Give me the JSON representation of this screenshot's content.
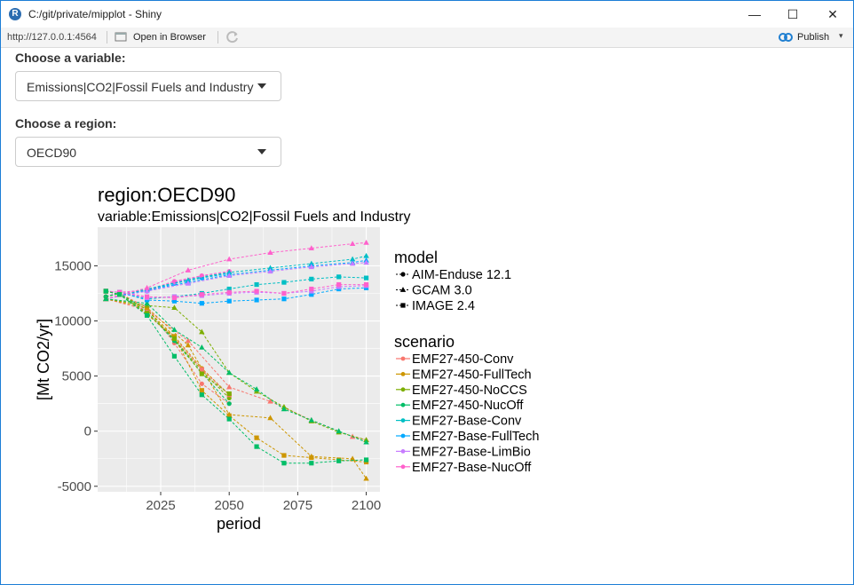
{
  "window": {
    "title": "C:/git/private/mipplot - Shiny",
    "minimize_glyph": "—",
    "maximize_glyph": "☐",
    "close_glyph": "✕"
  },
  "toolbar": {
    "url": "http://127.0.0.1:4564",
    "open_in_browser": "Open in Browser",
    "publish": "Publish",
    "publish_caret": "▾"
  },
  "controls": {
    "variable_label": "Choose a variable:",
    "variable_value": "Emissions|CO2|Fossil Fuels and Industry",
    "region_label": "Choose a region:",
    "region_value": "OECD90"
  },
  "colors": {
    "panel": "#ebebeb",
    "window_border": "#1c7ed6",
    "publish_blue": "#1f7fd1"
  },
  "chart_data": {
    "type": "line",
    "title": "region:OECD90",
    "subtitle": "variable:Emissions|CO2|Fossil Fuels and Industry",
    "xlabel": "period",
    "ylabel": "[Mt CO2/yr]",
    "xlim": [
      2002,
      2105
    ],
    "ylim": [
      -5500,
      18500
    ],
    "xticks": [
      2025,
      2050,
      2075,
      2100
    ],
    "yticks": [
      -5000,
      0,
      5000,
      10000,
      15000
    ],
    "xtick_labels": [
      "2025",
      "2050",
      "2075",
      "2100"
    ],
    "ytick_labels": [
      "-5000",
      "0",
      "5000",
      "10000",
      "15000"
    ],
    "grid": true,
    "legend_position": "right",
    "legend": {
      "model_title": "model",
      "models": [
        {
          "name": "AIM-Enduse 12.1",
          "shape": "circle"
        },
        {
          "name": "GCAM 3.0",
          "shape": "triangle"
        },
        {
          "name": "IMAGE 2.4",
          "shape": "square"
        }
      ],
      "scenario_title": "scenario",
      "scenarios": [
        {
          "name": "EMF27-450-Conv",
          "color": "#f8766d"
        },
        {
          "name": "EMF27-450-FullTech",
          "color": "#cd9600"
        },
        {
          "name": "EMF27-450-NoCCS",
          "color": "#7cae00"
        },
        {
          "name": "EMF27-450-NucOff",
          "color": "#00be67"
        },
        {
          "name": "EMF27-Base-Conv",
          "color": "#00bfc4"
        },
        {
          "name": "EMF27-Base-FullTech",
          "color": "#00a9ff"
        },
        {
          "name": "EMF27-Base-LimBio",
          "color": "#c77cff"
        },
        {
          "name": "EMF27-Base-NucOff",
          "color": "#ff61cc"
        }
      ]
    },
    "series": [
      {
        "model": "AIM-Enduse 12.1",
        "scenario": "EMF27-Base-Conv",
        "x": [
          2005,
          2010,
          2020,
          2030,
          2040,
          2050
        ],
        "y": [
          12200,
          12600,
          12700,
          13500,
          14000,
          14400
        ]
      },
      {
        "model": "AIM-Enduse 12.1",
        "scenario": "EMF27-Base-FullTech",
        "x": [
          2005,
          2010,
          2020,
          2030,
          2040,
          2050
        ],
        "y": [
          12200,
          12600,
          12700,
          13400,
          13900,
          14300
        ]
      },
      {
        "model": "AIM-Enduse 12.1",
        "scenario": "EMF27-Base-LimBio",
        "x": [
          2005,
          2010,
          2020,
          2030,
          2040,
          2050
        ],
        "y": [
          12200,
          12600,
          12800,
          13500,
          14100,
          14500
        ]
      },
      {
        "model": "AIM-Enduse 12.1",
        "scenario": "EMF27-Base-NucOff",
        "x": [
          2005,
          2010,
          2020,
          2030,
          2040,
          2050
        ],
        "y": [
          12200,
          12600,
          12800,
          13600,
          14100,
          14500
        ]
      },
      {
        "model": "AIM-Enduse 12.1",
        "scenario": "EMF27-450-Conv",
        "x": [
          2005,
          2010,
          2020,
          2030,
          2040,
          2050
        ],
        "y": [
          12200,
          12500,
          11200,
          8000,
          4300,
          2500
        ]
      },
      {
        "model": "AIM-Enduse 12.1",
        "scenario": "EMF27-450-FullTech",
        "x": [
          2005,
          2010,
          2020,
          2030,
          2040,
          2050
        ],
        "y": [
          12200,
          12500,
          11000,
          8600,
          5700,
          3300
        ]
      },
      {
        "model": "AIM-Enduse 12.1",
        "scenario": "EMF27-450-NoCCS",
        "x": [
          2005,
          2010,
          2020,
          2030,
          2040,
          2050
        ],
        "y": [
          12200,
          12500,
          11000,
          8300,
          5500,
          3000
        ]
      },
      {
        "model": "AIM-Enduse 12.1",
        "scenario": "EMF27-450-NucOff",
        "x": [
          2005,
          2010,
          2020,
          2030,
          2040,
          2050
        ],
        "y": [
          12200,
          12500,
          10800,
          8200,
          5300,
          2500
        ]
      },
      {
        "model": "GCAM 3.0",
        "scenario": "EMF27-Base-Conv",
        "x": [
          2005,
          2020,
          2035,
          2050,
          2065,
          2080,
          2095,
          2100
        ],
        "y": [
          12000,
          12900,
          13700,
          14400,
          14800,
          15200,
          15600,
          15900
        ]
      },
      {
        "model": "GCAM 3.0",
        "scenario": "EMF27-Base-FullTech",
        "x": [
          2005,
          2020,
          2035,
          2050,
          2065,
          2080,
          2095,
          2100
        ],
        "y": [
          12000,
          12800,
          13500,
          14200,
          14600,
          15000,
          15300,
          15500
        ]
      },
      {
        "model": "GCAM 3.0",
        "scenario": "EMF27-Base-LimBio",
        "x": [
          2005,
          2020,
          2035,
          2050,
          2065,
          2080,
          2095,
          2100
        ],
        "y": [
          12000,
          12700,
          13400,
          14100,
          14500,
          14900,
          15200,
          15300
        ]
      },
      {
        "model": "GCAM 3.0",
        "scenario": "EMF27-Base-NucOff",
        "x": [
          2005,
          2020,
          2035,
          2050,
          2065,
          2080,
          2095,
          2100
        ],
        "y": [
          12000,
          13000,
          14600,
          15600,
          16200,
          16600,
          17000,
          17100
        ]
      },
      {
        "model": "GCAM 3.0",
        "scenario": "EMF27-450-Conv",
        "x": [
          2005,
          2020,
          2035,
          2050,
          2065,
          2080,
          2095,
          2100
        ],
        "y": [
          12000,
          11000,
          8200,
          4000,
          2700,
          1000,
          -500,
          -800
        ]
      },
      {
        "model": "GCAM 3.0",
        "scenario": "EMF27-450-FullTech",
        "x": [
          2005,
          2020,
          2035,
          2050,
          2065,
          2080,
          2095,
          2100
        ],
        "y": [
          12000,
          11200,
          7800,
          1500,
          1200,
          -2300,
          -2500,
          -4300
        ]
      },
      {
        "model": "GCAM 3.0",
        "scenario": "EMF27-450-NoCCS",
        "x": [
          2005,
          2020,
          2030,
          2040,
          2050,
          2060,
          2070,
          2080,
          2090,
          2100
        ],
        "y": [
          12000,
          11400,
          11200,
          9000,
          5300,
          3600,
          2200,
          900,
          -100,
          -800
        ]
      },
      {
        "model": "GCAM 3.0",
        "scenario": "EMF27-450-NucOff",
        "x": [
          2005,
          2020,
          2030,
          2040,
          2050,
          2060,
          2070,
          2080,
          2090,
          2100
        ],
        "y": [
          12000,
          11600,
          9200,
          7600,
          5300,
          3800,
          2000,
          1000,
          0,
          -1000
        ]
      },
      {
        "model": "IMAGE 2.4",
        "scenario": "EMF27-Base-Conv",
        "x": [
          2005,
          2010,
          2020,
          2030,
          2040,
          2050,
          2060,
          2070,
          2080,
          2090,
          2100
        ],
        "y": [
          12700,
          12600,
          12000,
          12200,
          12500,
          12900,
          13300,
          13500,
          13800,
          14000,
          13900
        ]
      },
      {
        "model": "IMAGE 2.4",
        "scenario": "EMF27-Base-FullTech",
        "x": [
          2005,
          2010,
          2020,
          2030,
          2040,
          2050,
          2060,
          2070,
          2080,
          2090,
          2100
        ],
        "y": [
          12700,
          12600,
          11900,
          11800,
          11600,
          11800,
          11900,
          12000,
          12400,
          12900,
          13000
        ]
      },
      {
        "model": "IMAGE 2.4",
        "scenario": "EMF27-Base-LimBio",
        "x": [
          2005,
          2010,
          2020,
          2030,
          2040,
          2050,
          2060,
          2070,
          2080,
          2090,
          2100
        ],
        "y": [
          12700,
          12600,
          12100,
          12200,
          12300,
          12500,
          12600,
          12500,
          12700,
          13100,
          13200
        ]
      },
      {
        "model": "IMAGE 2.4",
        "scenario": "EMF27-Base-NucOff",
        "x": [
          2005,
          2010,
          2020,
          2030,
          2040,
          2050,
          2060,
          2070,
          2080,
          2090,
          2100
        ],
        "y": [
          12700,
          12600,
          12200,
          12100,
          12400,
          12600,
          12700,
          12500,
          12900,
          13300,
          13300
        ]
      },
      {
        "model": "IMAGE 2.4",
        "scenario": "EMF27-450-Conv",
        "x": [
          2005,
          2010,
          2020,
          2030,
          2040,
          2050
        ],
        "y": [
          12700,
          12400,
          10600,
          8500,
          5600,
          3300
        ]
      },
      {
        "model": "IMAGE 2.4",
        "scenario": "EMF27-450-FullTech",
        "x": [
          2005,
          2010,
          2020,
          2030,
          2040,
          2050,
          2060,
          2070,
          2080,
          2090,
          2100
        ],
        "y": [
          12700,
          12400,
          10600,
          8600,
          3700,
          1400,
          -600,
          -2200,
          -2400,
          -2600,
          -2800
        ]
      },
      {
        "model": "IMAGE 2.4",
        "scenario": "EMF27-450-NoCCS",
        "x": [
          2005,
          2010,
          2020,
          2030,
          2040,
          2050
        ],
        "y": [
          12700,
          12400,
          10700,
          8400,
          5200,
          3400
        ]
      },
      {
        "model": "IMAGE 2.4",
        "scenario": "EMF27-450-NucOff",
        "x": [
          2005,
          2010,
          2020,
          2030,
          2040,
          2050,
          2060,
          2070,
          2080,
          2090,
          2100
        ],
        "y": [
          12700,
          12400,
          10500,
          6800,
          3300,
          1100,
          -1400,
          -2900,
          -2900,
          -2700,
          -2600
        ]
      }
    ]
  }
}
